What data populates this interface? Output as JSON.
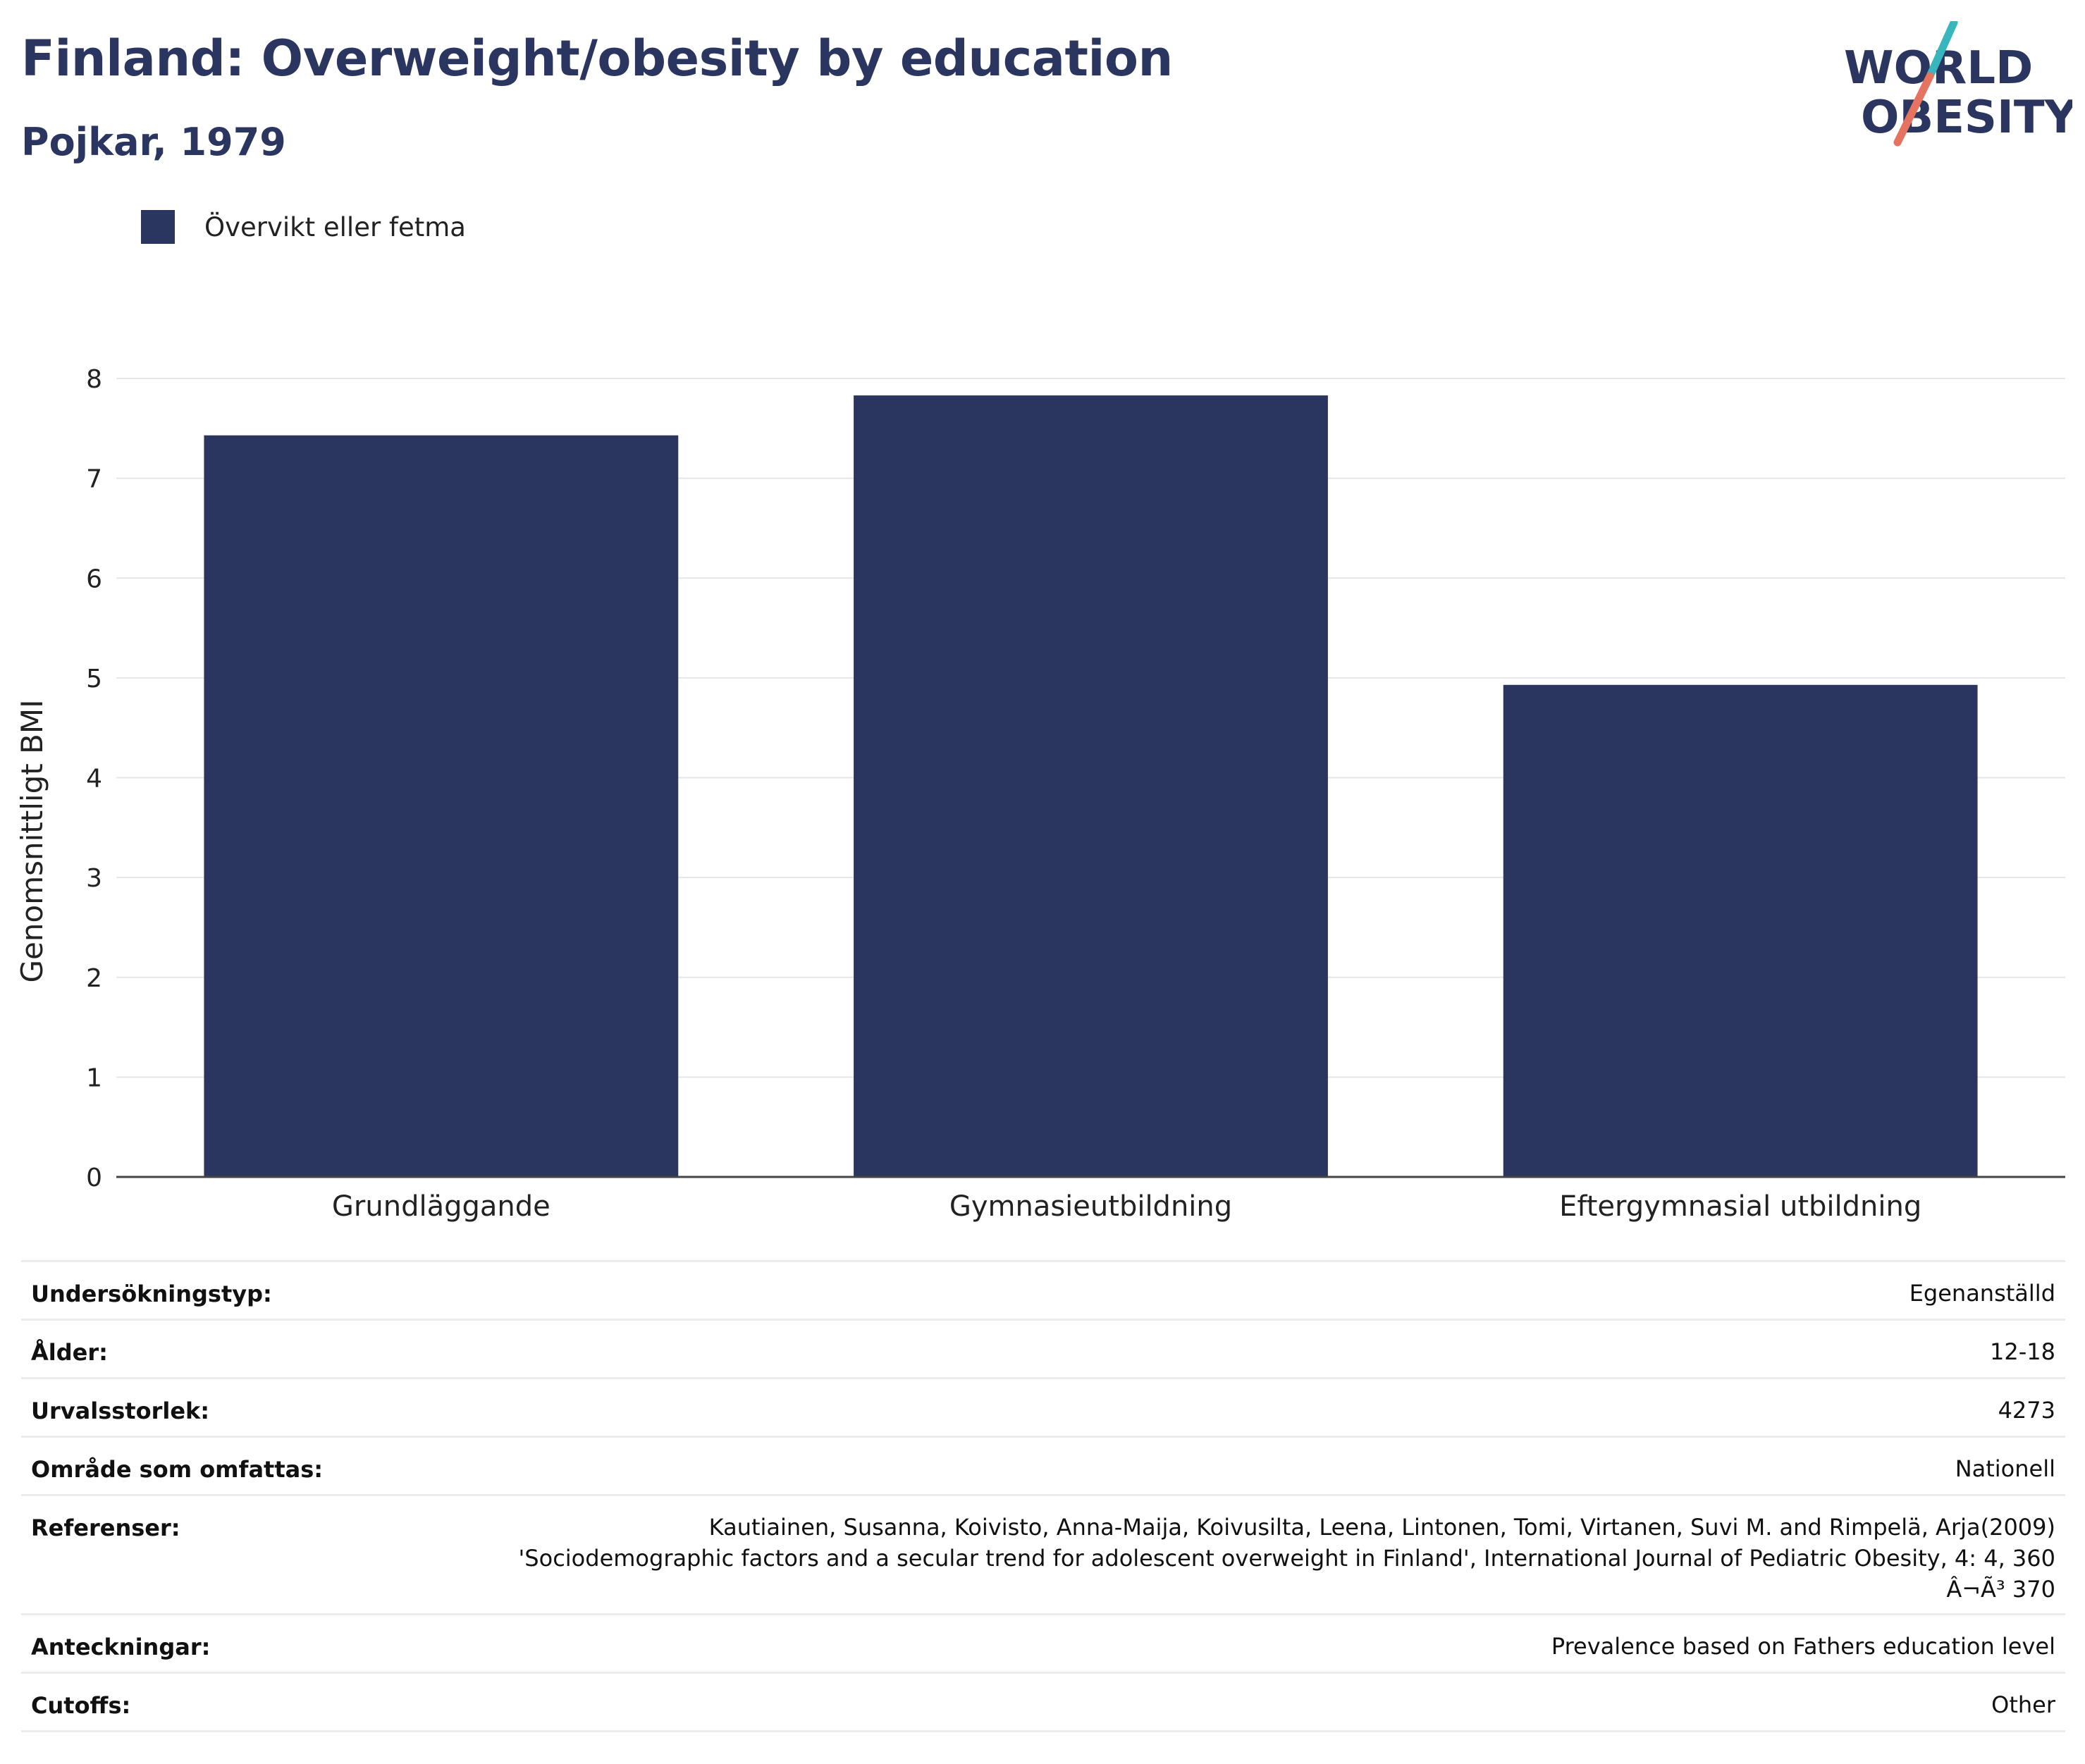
{
  "title": "Finland: Overweight/obesity by education",
  "subtitle": "Pojkar, 1979",
  "logo": {
    "line1": "WORLD",
    "line2": "OBESITY"
  },
  "legend": {
    "label": "Övervikt eller fetma",
    "color": "#2b3660"
  },
  "chart_data": {
    "type": "bar",
    "title": "Finland: Overweight/obesity by education",
    "subtitle": "Pojkar, 1979",
    "categories": [
      "Grundläggande",
      "Gymnasieutbildning",
      "Eftergymnasial utbildning"
    ],
    "series": [
      {
        "name": "Övervikt eller fetma",
        "values": [
          7.43,
          7.83,
          4.93
        ],
        "color": "#2b3660"
      }
    ],
    "xlabel": "",
    "ylabel": "Genomsnittligt BMI",
    "ylim": [
      0,
      8
    ],
    "yticks": [
      0,
      1,
      2,
      3,
      4,
      5,
      6,
      7,
      8
    ],
    "grid": true,
    "legend_position": "top-left"
  },
  "info": {
    "rows": [
      {
        "key": "Undersökningstyp:",
        "value": "Egenanställd"
      },
      {
        "key": "Ålder:",
        "value": "12-18"
      },
      {
        "key": "Urvalsstorlek:",
        "value": "4273"
      },
      {
        "key": "Område som omfattas:",
        "value": "Nationell"
      },
      {
        "key": "Referenser:",
        "value_lines": [
          "Kautiainen, Susanna, Koivisto, Anna-Maija, Koivusilta, Leena, Lintonen, Tomi, Virtanen, Suvi M. and Rimpelä, Arja(2009)",
          "'Sociodemographic factors and a secular trend for adolescent overweight in Finland', International Journal of Pediatric Obesity, 4: 4, 360",
          "Â¬Ã³ 370"
        ]
      },
      {
        "key": "Anteckningar:",
        "value": "Prevalence based on Fathers education level"
      },
      {
        "key": "Cutoffs:",
        "value": "Other"
      }
    ]
  }
}
